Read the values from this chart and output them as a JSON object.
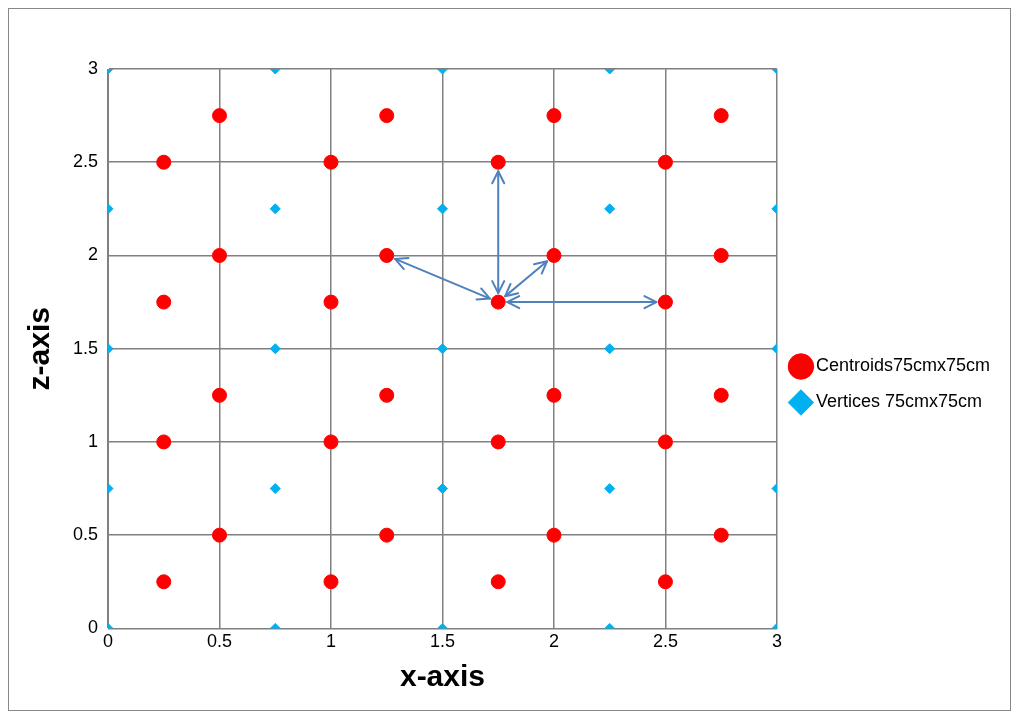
{
  "chart_data": {
    "type": "scatter",
    "xlabel": "x-axis",
    "ylabel": "z-axis",
    "xlim": [
      0,
      3
    ],
    "ylim": [
      0,
      3
    ],
    "xticks": [
      0,
      0.5,
      1,
      1.5,
      2,
      2.5,
      3
    ],
    "yticks": [
      0,
      0.5,
      1,
      1.5,
      2,
      2.5,
      3
    ],
    "grid": true,
    "legend": "right",
    "series": [
      {
        "name": "Centroids75cmx75cm",
        "color": "#ff0000",
        "marker": "circle",
        "x": [
          0.5,
          1.25,
          2,
          2.75,
          0.25,
          1,
          1.75,
          2.5,
          0.5,
          1.25,
          2,
          2.75,
          0.25,
          1,
          1.75,
          2.5,
          0.5,
          1.25,
          2,
          2.75,
          0.25,
          1,
          1.75,
          2.5,
          0.5,
          1.25,
          2,
          2.75,
          0.25,
          1,
          1.75,
          2.5
        ],
        "values": [
          2.75,
          2.75,
          2.75,
          2.75,
          2.5,
          2.5,
          2.5,
          2.5,
          2,
          2,
          2,
          2,
          1.75,
          1.75,
          1.75,
          1.75,
          1.25,
          1.25,
          1.25,
          1.25,
          1,
          1,
          1,
          1,
          0.5,
          0.5,
          0.5,
          0.5,
          0.25,
          0.25,
          0.25,
          0.25
        ]
      },
      {
        "name": "Vertices 75cmx75cm",
        "color": "#00b0f0",
        "marker": "diamond",
        "x": [
          0,
          0.75,
          1.5,
          2.25,
          3,
          0,
          0.75,
          1.5,
          2.25,
          3,
          0,
          0.75,
          1.5,
          2.25,
          3,
          0,
          0.75,
          1.5,
          2.25,
          3,
          0,
          0.75,
          1.5,
          2.25,
          3
        ],
        "values": [
          3,
          3,
          3,
          3,
          3,
          2.25,
          2.25,
          2.25,
          2.25,
          2.25,
          1.5,
          1.5,
          1.5,
          1.5,
          1.5,
          0.75,
          0.75,
          0.75,
          0.75,
          0.75,
          0,
          0,
          0,
          0,
          0
        ]
      }
    ]
  }
}
